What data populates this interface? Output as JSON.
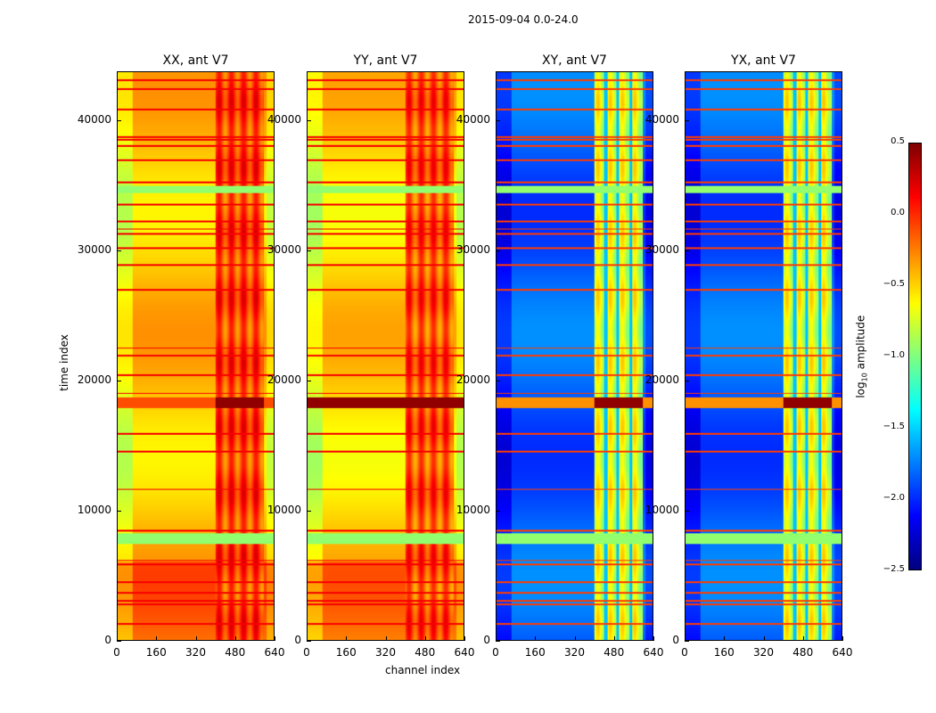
{
  "suptitle": "2015-09-04 0.0-24.0",
  "chart_data": {
    "type": "heatmap",
    "title": "2015-09-04 0.0-24.0",
    "xlabel": "channel index",
    "ylabel": "time index",
    "xlim": [
      0,
      640
    ],
    "ylim": [
      0,
      43770
    ],
    "xticks": [
      "0",
      "160",
      "320",
      "480",
      "640"
    ],
    "yticks": [
      "0",
      "10000",
      "20000",
      "30000",
      "40000"
    ],
    "ytick_values": [
      0,
      10000,
      20000,
      30000,
      40000
    ],
    "xtick_values": [
      0,
      160,
      320,
      480,
      640
    ],
    "colorbar": {
      "label_base": "log",
      "label_sub": "10",
      "label_rest": " amplitude",
      "range": [
        -2.5,
        0.5
      ],
      "ticks": [
        "0.5",
        "0.0",
        "−0.5",
        "−1.0",
        "−1.5",
        "−2.0",
        "−2.5"
      ],
      "tick_values": [
        0.5,
        0,
        -0.5,
        -1,
        -1.5,
        -2,
        -2.5
      ],
      "colormap": "jet"
    },
    "panels": [
      {
        "title": "XX, ant V7",
        "base": -0.45,
        "rfi_level": -0.05,
        "flag_band_level": 0.45,
        "flag_full": false,
        "flag_side": -0.1
      },
      {
        "title": "YY, ant V7",
        "base": -0.5,
        "rfi_level": -0.1,
        "flag_band_level": 0.45,
        "flag_full": true,
        "flag_side": 0.45
      },
      {
        "title": "XY, ant V7",
        "base": -1.85,
        "rfi_level": -0.75,
        "flag_band_level": 0.45,
        "flag_full": false,
        "flag_side": -0.3
      },
      {
        "title": "YX, ant V7",
        "base": -1.85,
        "rfi_level": -0.75,
        "flag_band_level": 0.45,
        "flag_full": false,
        "flag_side": -0.3
      }
    ],
    "rfi_channels": [
      400,
      600
    ],
    "flag_band_time": [
      17900,
      18700
    ],
    "green_bands_time": [
      [
        7400,
        8200
      ],
      [
        34500,
        35000
      ]
    ],
    "red_line_times": [
      1200,
      2700,
      3000,
      3600,
      4400,
      5800,
      6100,
      8400,
      11600,
      14500,
      15900,
      19000,
      20400,
      21900,
      22500,
      27000,
      28900,
      30200,
      31300,
      31700,
      32300,
      33600,
      35300,
      37000,
      38100,
      38600,
      38800,
      40900,
      42500,
      43200
    ]
  }
}
